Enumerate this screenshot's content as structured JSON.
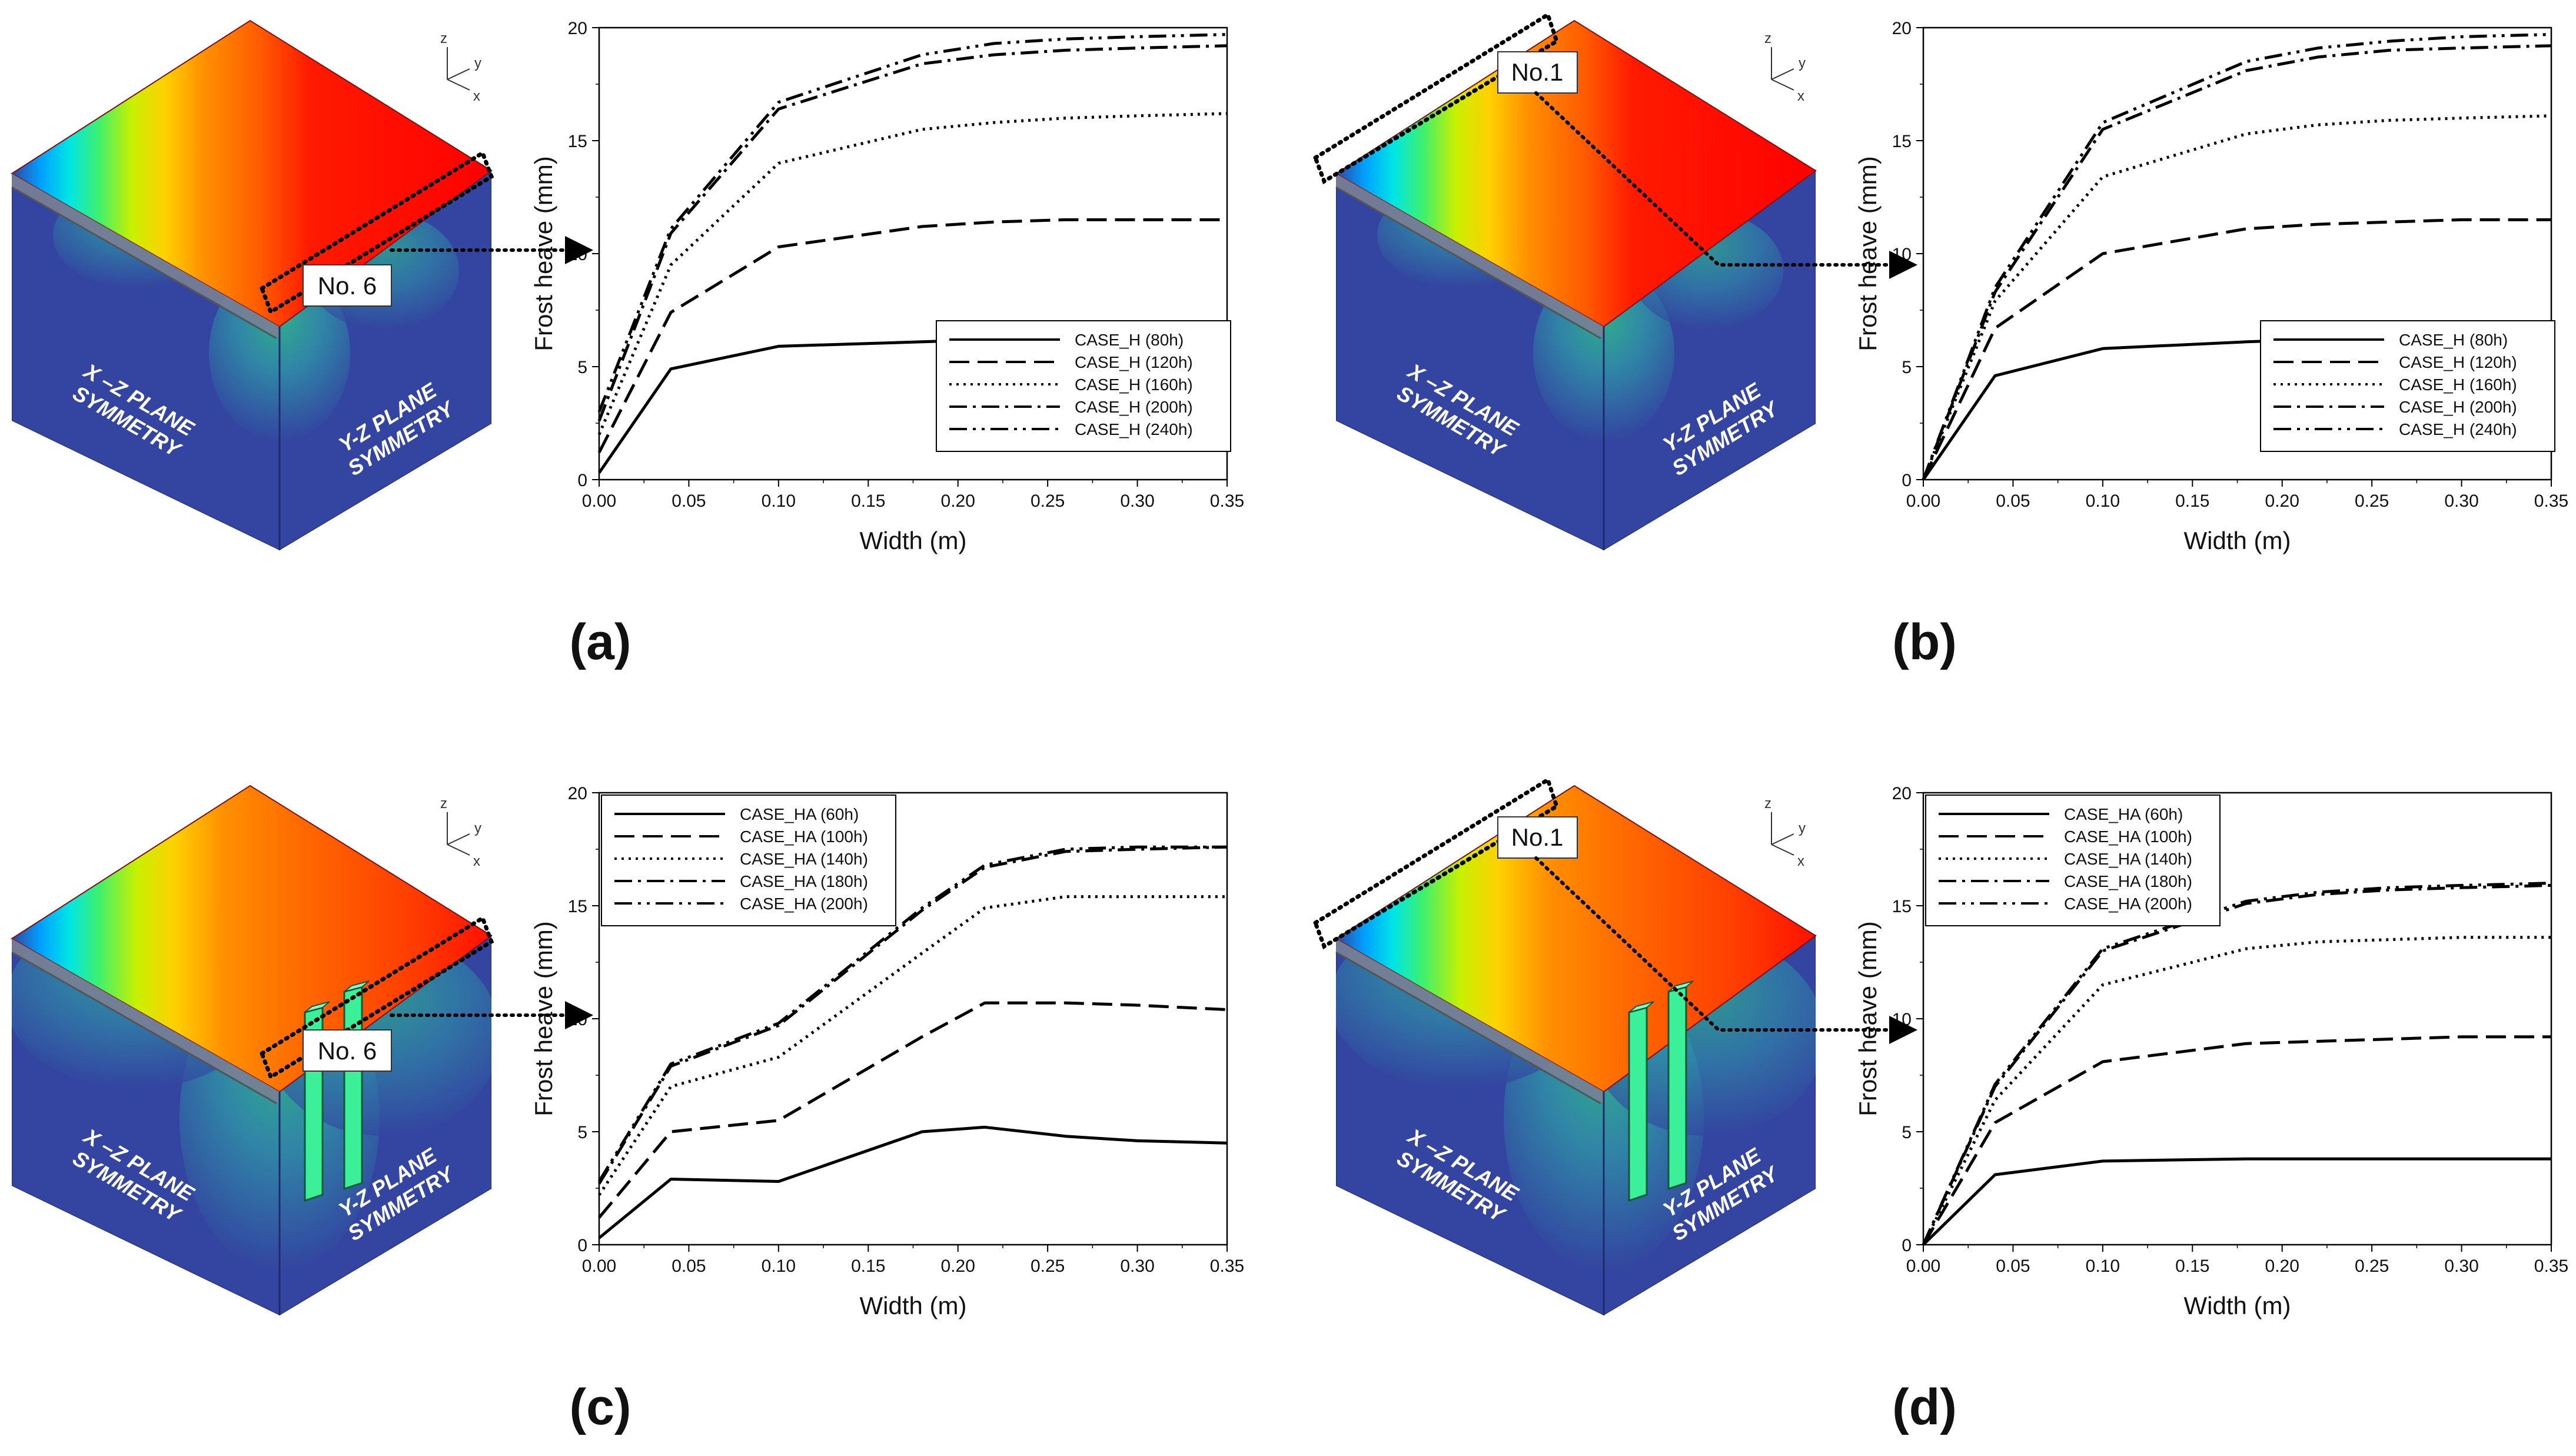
{
  "figure": {
    "model_labels": {
      "xz_line1": "X –Z PLANE",
      "xz_line2": "SYMMETRY",
      "yz_line1": "Y-Z PLANE",
      "yz_line2": "SYMMETRY",
      "axis_z": "z",
      "axis_y": "y",
      "axis_x": "x"
    },
    "colors": {
      "soil": "#3345a0",
      "hot": "#ff0000",
      "orange": "#ff6a00",
      "yellow": "#ffe000",
      "cyan": "#00e0ff",
      "green": "#2edb8a",
      "pillar": "#3cf09a"
    }
  },
  "panels": [
    {
      "label": "(a)",
      "node_label": "No. 6",
      "has_pillars": false,
      "chart": {
        "xlabel": "Width (m)",
        "ylabel": "Frost heave (mm)"
      }
    },
    {
      "label": "(b)",
      "node_label": "No.1",
      "has_pillars": false,
      "chart": {
        "xlabel": "Width (m)",
        "ylabel": "Frost heave (mm)"
      }
    },
    {
      "label": "(c)",
      "node_label": "No. 6",
      "has_pillars": true,
      "chart": {
        "xlabel": "Width (m)",
        "ylabel": "Frost heave (mm)"
      }
    },
    {
      "label": "(d)",
      "node_label": "No.1",
      "has_pillars": true,
      "chart": {
        "xlabel": "Width (m)",
        "ylabel": "Frost heave (mm)"
      }
    }
  ],
  "chart_data": [
    {
      "type": "line",
      "panel": "(a)",
      "xlabel": "Width (m)",
      "ylabel": "Frost heave (mm)",
      "xlim": [
        0,
        0.35
      ],
      "ylim": [
        0,
        20
      ],
      "xticks": [
        "0.00",
        "0.05",
        "0.10",
        "0.15",
        "0.20",
        "0.25",
        "0.30",
        "0.35"
      ],
      "yticks": [
        "0",
        "5",
        "10",
        "15",
        "20"
      ],
      "legend_position": "bottom-right",
      "x": [
        0.0,
        0.04,
        0.1,
        0.18,
        0.22,
        0.26,
        0.3,
        0.35
      ],
      "series": [
        {
          "name": "CASE_H (80h)",
          "dash": "solid",
          "values": [
            0.3,
            4.9,
            5.9,
            6.1,
            6.2,
            6.2,
            6.2,
            6.2
          ]
        },
        {
          "name": "CASE_H (120h)",
          "dash": "dash",
          "values": [
            1.2,
            7.4,
            10.3,
            11.2,
            11.4,
            11.5,
            11.5,
            11.5
          ]
        },
        {
          "name": "CASE_H (160h)",
          "dash": "dot",
          "values": [
            2.0,
            9.5,
            14.0,
            15.5,
            15.8,
            16.0,
            16.1,
            16.2
          ]
        },
        {
          "name": "CASE_H (200h)",
          "dash": "dashdot",
          "values": [
            2.6,
            10.9,
            16.4,
            18.4,
            18.8,
            19.0,
            19.1,
            19.2
          ]
        },
        {
          "name": "CASE_H (240h)",
          "dash": "dashdotdot",
          "values": [
            3.0,
            11.1,
            16.7,
            18.8,
            19.3,
            19.5,
            19.6,
            19.7
          ]
        }
      ]
    },
    {
      "type": "line",
      "panel": "(b)",
      "xlabel": "Width (m)",
      "ylabel": "Frost heave (mm)",
      "xlim": [
        0,
        0.35
      ],
      "ylim": [
        0,
        20
      ],
      "xticks": [
        "0.00",
        "0.05",
        "0.10",
        "0.15",
        "0.20",
        "0.25",
        "0.30",
        "0.35"
      ],
      "yticks": [
        "0",
        "5",
        "10",
        "15",
        "20"
      ],
      "legend_position": "bottom-right",
      "x": [
        0.0,
        0.04,
        0.1,
        0.18,
        0.22,
        0.26,
        0.3,
        0.35
      ],
      "series": [
        {
          "name": "CASE_H (80h)",
          "dash": "solid",
          "values": [
            0.0,
            4.6,
            5.8,
            6.1,
            6.2,
            6.2,
            6.2,
            6.2
          ]
        },
        {
          "name": "CASE_H (120h)",
          "dash": "dash",
          "values": [
            0.0,
            6.7,
            10.0,
            11.1,
            11.3,
            11.4,
            11.5,
            11.5
          ]
        },
        {
          "name": "CASE_H (160h)",
          "dash": "dot",
          "values": [
            0.0,
            7.9,
            13.4,
            15.3,
            15.7,
            15.9,
            16.0,
            16.1
          ]
        },
        {
          "name": "CASE_H (200h)",
          "dash": "dashdot",
          "values": [
            0.0,
            8.3,
            15.5,
            18.1,
            18.7,
            19.0,
            19.1,
            19.2
          ]
        },
        {
          "name": "CASE_H (240h)",
          "dash": "dashdotdot",
          "values": [
            0.0,
            8.5,
            15.8,
            18.5,
            19.1,
            19.4,
            19.6,
            19.7
          ]
        }
      ]
    },
    {
      "type": "line",
      "panel": "(c)",
      "xlabel": "Width (m)",
      "ylabel": "Frost heave (mm)",
      "xlim": [
        0,
        0.35
      ],
      "ylim": [
        0,
        20
      ],
      "xticks": [
        "0.00",
        "0.05",
        "0.10",
        "0.15",
        "0.20",
        "0.25",
        "0.30",
        "0.35"
      ],
      "yticks": [
        "0",
        "5",
        "10",
        "15",
        "20"
      ],
      "legend_position": "top-left",
      "x": [
        0.0,
        0.04,
        0.1,
        0.18,
        0.215,
        0.26,
        0.3,
        0.35
      ],
      "series": [
        {
          "name": "CASE_HA (60h)",
          "dash": "solid",
          "values": [
            0.3,
            2.9,
            2.8,
            5.0,
            5.2,
            4.8,
            4.6,
            4.5
          ]
        },
        {
          "name": "CASE_HA (100h)",
          "dash": "dash",
          "values": [
            1.2,
            5.0,
            5.5,
            9.2,
            10.7,
            10.7,
            10.6,
            10.4
          ]
        },
        {
          "name": "CASE_HA (140h)",
          "dash": "dot",
          "values": [
            2.2,
            7.0,
            8.3,
            12.9,
            14.9,
            15.4,
            15.4,
            15.4
          ]
        },
        {
          "name": "CASE_HA (180h)",
          "dash": "dashdot",
          "values": [
            2.7,
            7.9,
            9.7,
            14.8,
            16.7,
            17.4,
            17.5,
            17.6
          ]
        },
        {
          "name": "CASE_HA (200h)",
          "dash": "dashdotdot",
          "values": [
            2.8,
            8.0,
            9.8,
            14.9,
            16.8,
            17.5,
            17.6,
            17.6
          ]
        }
      ]
    },
    {
      "type": "line",
      "panel": "(d)",
      "xlabel": "Width (m)",
      "ylabel": "Frost heave (mm)",
      "xlim": [
        0,
        0.35
      ],
      "ylim": [
        0,
        20
      ],
      "xticks": [
        "0.00",
        "0.05",
        "0.10",
        "0.15",
        "0.20",
        "0.25",
        "0.30",
        "0.35"
      ],
      "yticks": [
        "0",
        "5",
        "10",
        "15",
        "20"
      ],
      "legend_position": "top-left",
      "x": [
        0.0,
        0.04,
        0.1,
        0.18,
        0.22,
        0.26,
        0.3,
        0.35
      ],
      "series": [
        {
          "name": "CASE_HA (60h)",
          "dash": "solid",
          "values": [
            0.0,
            3.1,
            3.7,
            3.8,
            3.8,
            3.8,
            3.8,
            3.8
          ]
        },
        {
          "name": "CASE_HA (100h)",
          "dash": "dash",
          "values": [
            0.0,
            5.4,
            8.1,
            8.9,
            9.0,
            9.1,
            9.2,
            9.2
          ]
        },
        {
          "name": "CASE_HA (140h)",
          "dash": "dot",
          "values": [
            0.0,
            6.4,
            11.5,
            13.1,
            13.4,
            13.5,
            13.6,
            13.6
          ]
        },
        {
          "name": "CASE_HA (180h)",
          "dash": "dashdot",
          "values": [
            0.0,
            7.0,
            13.0,
            15.1,
            15.5,
            15.7,
            15.8,
            15.9
          ]
        },
        {
          "name": "CASE_HA (200h)",
          "dash": "dashdotdot",
          "values": [
            0.0,
            7.1,
            13.1,
            15.2,
            15.6,
            15.8,
            15.9,
            16.0
          ]
        }
      ]
    }
  ]
}
